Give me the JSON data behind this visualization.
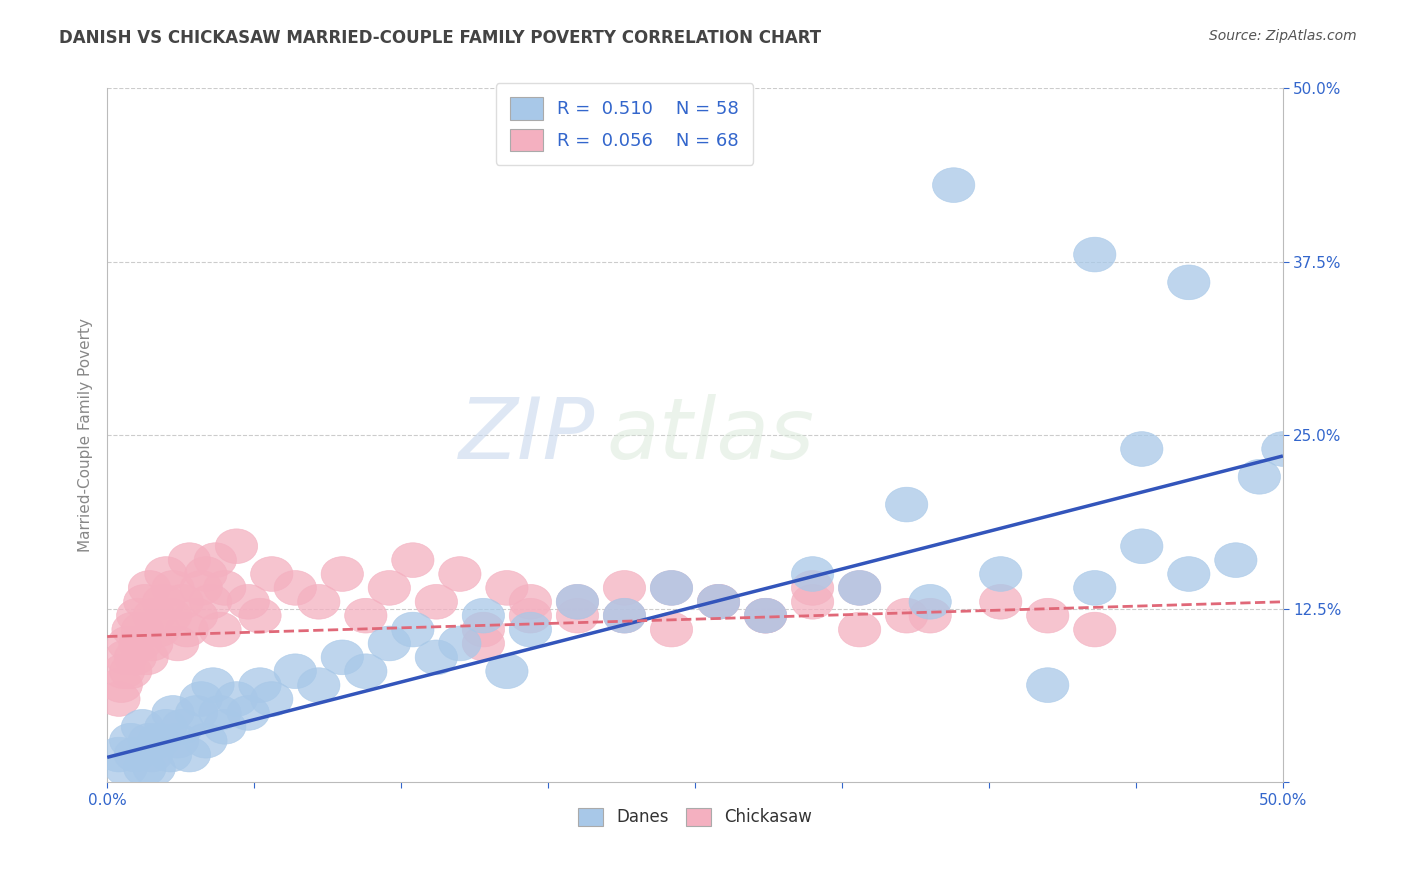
{
  "title": "DANISH VS CHICKASAW MARRIED-COUPLE FAMILY POVERTY CORRELATION CHART",
  "source": "Source: ZipAtlas.com",
  "ylabel": "Married-Couple Family Poverty",
  "xlim": [
    0.0,
    0.5
  ],
  "ylim": [
    0.0,
    0.5
  ],
  "background_color": "#ffffff",
  "danes_color": "#a8c8e8",
  "chickasaw_color": "#f4b0c0",
  "danes_line_color": "#3355bb",
  "chickasaw_line_color": "#e06878",
  "danes_R": 0.51,
  "danes_N": 58,
  "chickasaw_R": 0.056,
  "chickasaw_N": 68,
  "watermark_zip": "ZIP",
  "watermark_atlas": "atlas",
  "tick_color": "#3366cc",
  "title_color": "#444444",
  "label_color": "#888888",
  "danes_x": [
    0.005,
    0.008,
    0.01,
    0.012,
    0.015,
    0.016,
    0.018,
    0.019,
    0.02,
    0.022,
    0.025,
    0.027,
    0.028,
    0.03,
    0.032,
    0.035,
    0.038,
    0.04,
    0.042,
    0.045,
    0.048,
    0.05,
    0.055,
    0.06,
    0.065,
    0.07,
    0.08,
    0.09,
    0.1,
    0.11,
    0.12,
    0.13,
    0.14,
    0.15,
    0.16,
    0.17,
    0.18,
    0.2,
    0.22,
    0.24,
    0.26,
    0.28,
    0.3,
    0.32,
    0.35,
    0.38,
    0.4,
    0.42,
    0.44,
    0.46,
    0.48,
    0.49,
    0.5,
    0.36,
    0.42,
    0.46,
    0.34,
    0.44
  ],
  "danes_y": [
    0.02,
    0.01,
    0.03,
    0.02,
    0.04,
    0.01,
    0.03,
    0.02,
    0.01,
    0.03,
    0.04,
    0.02,
    0.05,
    0.03,
    0.04,
    0.02,
    0.05,
    0.06,
    0.03,
    0.07,
    0.05,
    0.04,
    0.06,
    0.05,
    0.07,
    0.06,
    0.08,
    0.07,
    0.09,
    0.08,
    0.1,
    0.11,
    0.09,
    0.1,
    0.12,
    0.08,
    0.11,
    0.13,
    0.12,
    0.14,
    0.13,
    0.12,
    0.15,
    0.14,
    0.13,
    0.15,
    0.07,
    0.14,
    0.24,
    0.15,
    0.16,
    0.22,
    0.24,
    0.43,
    0.38,
    0.36,
    0.2,
    0.17
  ],
  "chickasaw_x": [
    0.005,
    0.006,
    0.007,
    0.008,
    0.009,
    0.01,
    0.011,
    0.012,
    0.013,
    0.014,
    0.015,
    0.016,
    0.017,
    0.018,
    0.019,
    0.02,
    0.022,
    0.024,
    0.025,
    0.027,
    0.028,
    0.03,
    0.032,
    0.034,
    0.035,
    0.038,
    0.04,
    0.042,
    0.044,
    0.046,
    0.048,
    0.05,
    0.055,
    0.06,
    0.065,
    0.07,
    0.08,
    0.09,
    0.1,
    0.11,
    0.12,
    0.13,
    0.14,
    0.15,
    0.16,
    0.17,
    0.18,
    0.2,
    0.22,
    0.24,
    0.26,
    0.28,
    0.3,
    0.32,
    0.35,
    0.38,
    0.4,
    0.42,
    0.16,
    0.18,
    0.2,
    0.22,
    0.24,
    0.26,
    0.28,
    0.3,
    0.32,
    0.34
  ],
  "chickasaw_y": [
    0.06,
    0.07,
    0.08,
    0.09,
    0.1,
    0.08,
    0.11,
    0.09,
    0.12,
    0.1,
    0.11,
    0.13,
    0.09,
    0.14,
    0.1,
    0.12,
    0.11,
    0.13,
    0.15,
    0.12,
    0.14,
    0.1,
    0.13,
    0.11,
    0.16,
    0.12,
    0.14,
    0.15,
    0.13,
    0.16,
    0.11,
    0.14,
    0.17,
    0.13,
    0.12,
    0.15,
    0.14,
    0.13,
    0.15,
    0.12,
    0.14,
    0.16,
    0.13,
    0.15,
    0.11,
    0.14,
    0.12,
    0.13,
    0.12,
    0.14,
    0.13,
    0.12,
    0.13,
    0.14,
    0.12,
    0.13,
    0.12,
    0.11,
    0.1,
    0.13,
    0.12,
    0.14,
    0.11,
    0.13,
    0.12,
    0.14,
    0.11,
    0.12
  ],
  "danes_line_x0": 0.0,
  "danes_line_y0": 0.018,
  "danes_line_x1": 0.5,
  "danes_line_y1": 0.235,
  "chick_line_x0": 0.0,
  "chick_line_y0": 0.105,
  "chick_line_x1": 0.5,
  "chick_line_y1": 0.13
}
